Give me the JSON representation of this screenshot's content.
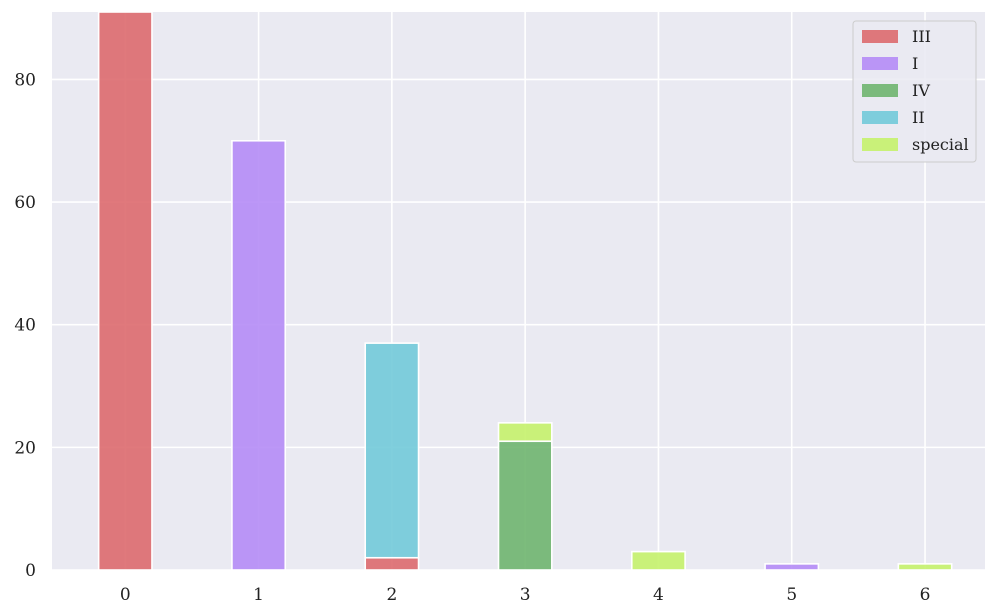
{
  "chart_data": {
    "type": "bar",
    "stacked": true,
    "categories": [
      "0",
      "1",
      "2",
      "3",
      "4",
      "5",
      "6"
    ],
    "series": [
      {
        "name": "III",
        "color": "#dd6a6e",
        "values": [
          91,
          0,
          2,
          0,
          0,
          0,
          0
        ]
      },
      {
        "name": "I",
        "color": "#b58cf6",
        "values": [
          0,
          70,
          0,
          0,
          0,
          1,
          0
        ]
      },
      {
        "name": "IV",
        "color": "#6fb56f",
        "values": [
          0,
          0,
          0,
          21,
          0,
          0,
          0
        ]
      },
      {
        "name": "II",
        "color": "#72cad9",
        "values": [
          0,
          0,
          35,
          0,
          0,
          0,
          0
        ]
      },
      {
        "name": "special",
        "color": "#c5f26b",
        "values": [
          0,
          0,
          0,
          3,
          3,
          0,
          1
        ]
      }
    ],
    "y_ticks": [
      "0",
      "20",
      "40",
      "60",
      "80"
    ],
    "x_ticks": [
      "0",
      "1",
      "2",
      "3",
      "4",
      "5",
      "6"
    ],
    "ylim": [
      0,
      91
    ],
    "xlim": [
      -0.55,
      6.45
    ],
    "grid": true,
    "legend_position": "top-right",
    "colors": {
      "plot_background": "#eaeaf2",
      "grid": "#ffffff"
    }
  }
}
